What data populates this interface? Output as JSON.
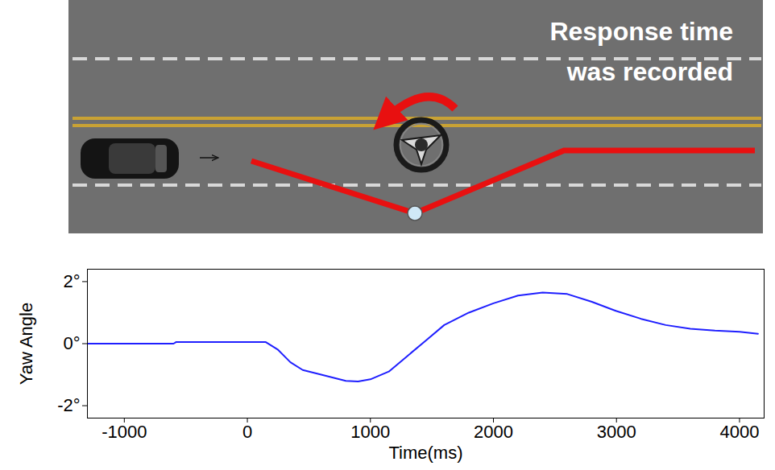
{
  "scene": {
    "text": "Response time was recorded"
  },
  "chart_data": {
    "type": "line",
    "xlabel": "Time(ms)",
    "ylabel": "Yaw Angle",
    "x": [
      -1300,
      -600,
      -580,
      150,
      250,
      350,
      450,
      600,
      800,
      900,
      1000,
      1150,
      1300,
      1450,
      1600,
      1800,
      2000,
      2200,
      2400,
      2600,
      2800,
      3000,
      3200,
      3400,
      3600,
      3800,
      4000,
      4150
    ],
    "values": [
      0.0,
      0.0,
      0.05,
      0.05,
      -0.2,
      -0.6,
      -0.85,
      -1.0,
      -1.2,
      -1.22,
      -1.15,
      -0.9,
      -0.4,
      0.1,
      0.6,
      1.0,
      1.3,
      1.55,
      1.65,
      1.6,
      1.35,
      1.05,
      0.8,
      0.6,
      0.48,
      0.42,
      0.38,
      0.32
    ],
    "color": "#1f1fff",
    "xlim": [
      -1300,
      4200
    ],
    "xticks": [
      -1000,
      0,
      1000,
      2000,
      3000,
      4000
    ],
    "ylim": [
      -2.4,
      2.4
    ],
    "yticks": [
      {
        "value": -2,
        "label": "-2°"
      },
      {
        "value": 0,
        "label": "0°"
      },
      {
        "value": 2,
        "label": "2°"
      }
    ],
    "grid": false
  }
}
